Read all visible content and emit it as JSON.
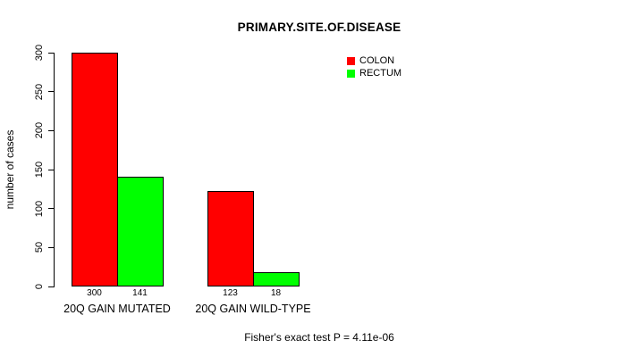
{
  "chart_data": {
    "type": "bar",
    "title": "PRIMARY.SITE.OF.DISEASE",
    "categories": [
      "20Q GAIN MUTATED",
      "20Q GAIN WILD-TYPE"
    ],
    "series": [
      {
        "name": "COLON",
        "color": "#FF0000",
        "values": [
          300,
          123
        ]
      },
      {
        "name": "RECTUM",
        "color": "#00FF00",
        "values": [
          141,
          18
        ]
      }
    ],
    "value_labels": [
      [
        300,
        141
      ],
      [
        123,
        18
      ]
    ],
    "xlabel": "",
    "ylabel": "number of cases",
    "ylim": [
      0,
      300
    ],
    "yticks": [
      0,
      50,
      100,
      150,
      200,
      250,
      300
    ],
    "grid": false,
    "legend": {
      "position": "top-right",
      "entries": [
        "COLON",
        "RECTUM"
      ]
    },
    "annotation": "Fisher's exact test P = 4.11e-06"
  },
  "colors": {
    "colon": "#FF0000",
    "rectum": "#00FF00",
    "axis": "#000000",
    "background": "#FFFFFF"
  }
}
